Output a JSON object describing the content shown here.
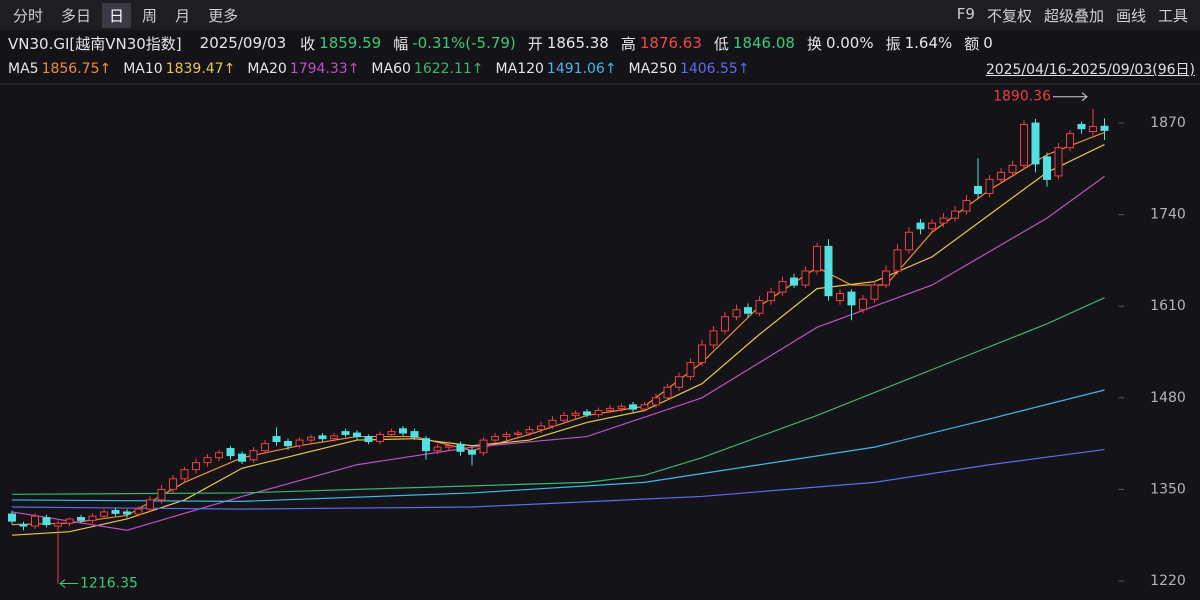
{
  "toolbar": {
    "tabs": [
      "分时",
      "多日",
      "日",
      "周",
      "月",
      "更多"
    ],
    "tools": [
      "F9",
      "不复权",
      "超级叠加",
      "画线",
      "工具"
    ]
  },
  "quote": {
    "symbol": "VN30.GI[越南VN30指数]",
    "date": "2025/09/03",
    "fields": [
      {
        "label": "收",
        "value": "1859.59",
        "color": "#3cc878"
      },
      {
        "label": "幅",
        "value": "-0.31%(-5.79)",
        "color": "#3cc878"
      },
      {
        "label": "开",
        "value": "1865.38",
        "color": "#e6e6e6"
      },
      {
        "label": "高",
        "value": "1876.63",
        "color": "#f04848"
      },
      {
        "label": "低",
        "value": "1846.08",
        "color": "#3cc878"
      },
      {
        "label": "换",
        "value": "0.00%",
        "color": "#e6e6e6"
      },
      {
        "label": "振",
        "value": "1.64%",
        "color": "#e6e6e6"
      },
      {
        "label": "额",
        "value": "0",
        "color": "#e6e6e6"
      }
    ]
  },
  "chart_data": {
    "type": "candlestick",
    "date_range": "2025/04/16-2025/09/03(96日)",
    "up_color": "#f03c46",
    "down_color": "#54e0e0",
    "open": [
      1315,
      1300,
      1298,
      1310,
      1298,
      1302,
      1310,
      1306,
      1312,
      1320,
      1318,
      1315,
      1322,
      1335,
      1350,
      1365,
      1378,
      1388,
      1395,
      1408,
      1400,
      1392,
      1405,
      1425,
      1418,
      1412,
      1420,
      1426,
      1422,
      1432,
      1430,
      1425,
      1418,
      1428,
      1436,
      1432,
      1422,
      1405,
      1410,
      1414,
      1405,
      1402,
      1420,
      1425,
      1428,
      1430,
      1435,
      1440,
      1448,
      1455,
      1460,
      1456,
      1462,
      1465,
      1470,
      1464,
      1470,
      1480,
      1495,
      1510,
      1530,
      1555,
      1575,
      1595,
      1608,
      1600,
      1618,
      1630,
      1650,
      1640,
      1660,
      1695,
      1618,
      1630,
      1605,
      1620,
      1640,
      1660,
      1690,
      1728,
      1720,
      1728,
      1735,
      1745,
      1780,
      1770,
      1790,
      1800,
      1810,
      1870,
      1822,
      1795,
      1835,
      1868,
      1858,
      1865.38
    ],
    "high": [
      1320,
      1304,
      1316,
      1314,
      1306,
      1310,
      1314,
      1316,
      1322,
      1324,
      1322,
      1326,
      1340,
      1356,
      1370,
      1382,
      1394,
      1400,
      1406,
      1412,
      1404,
      1410,
      1420,
      1438,
      1422,
      1424,
      1428,
      1430,
      1430,
      1436,
      1434,
      1428,
      1432,
      1436,
      1440,
      1436,
      1426,
      1414,
      1418,
      1418,
      1410,
      1424,
      1430,
      1432,
      1434,
      1440,
      1446,
      1454,
      1460,
      1462,
      1464,
      1466,
      1470,
      1472,
      1474,
      1474,
      1486,
      1500,
      1516,
      1536,
      1562,
      1582,
      1602,
      1612,
      1614,
      1624,
      1636,
      1652,
      1656,
      1666,
      1700,
      1705,
      1634,
      1634,
      1626,
      1646,
      1668,
      1698,
      1722,
      1734,
      1734,
      1742,
      1752,
      1768,
      1820,
      1796,
      1806,
      1816,
      1874,
      1876,
      1828,
      1842,
      1860,
      1872,
      1890.36,
      1876.63
    ],
    "low": [
      1300,
      1292,
      1294,
      1296,
      1216.35,
      1298,
      1302,
      1302,
      1308,
      1312,
      1310,
      1312,
      1318,
      1330,
      1345,
      1360,
      1372,
      1382,
      1390,
      1392,
      1386,
      1388,
      1400,
      1412,
      1406,
      1408,
      1416,
      1418,
      1418,
      1424,
      1420,
      1414,
      1414,
      1424,
      1426,
      1420,
      1392,
      1400,
      1406,
      1398,
      1384,
      1398,
      1416,
      1420,
      1424,
      1426,
      1430,
      1436,
      1444,
      1450,
      1452,
      1452,
      1458,
      1460,
      1460,
      1460,
      1466,
      1476,
      1490,
      1505,
      1525,
      1550,
      1570,
      1590,
      1594,
      1596,
      1612,
      1625,
      1636,
      1636,
      1655,
      1618,
      1612,
      1590,
      1600,
      1615,
      1636,
      1655,
      1685,
      1712,
      1715,
      1722,
      1730,
      1740,
      1762,
      1765,
      1784,
      1795,
      1805,
      1800,
      1780,
      1790,
      1830,
      1855,
      1852,
      1846.08
    ],
    "close": [
      1305,
      1298,
      1312,
      1300,
      1302,
      1308,
      1306,
      1312,
      1318,
      1316,
      1315,
      1322,
      1335,
      1350,
      1365,
      1378,
      1388,
      1395,
      1402,
      1398,
      1390,
      1405,
      1415,
      1418,
      1412,
      1420,
      1424,
      1422,
      1426,
      1428,
      1425,
      1418,
      1428,
      1432,
      1430,
      1424,
      1405,
      1410,
      1412,
      1404,
      1400,
      1420,
      1425,
      1428,
      1430,
      1435,
      1440,
      1448,
      1455,
      1458,
      1456,
      1462,
      1465,
      1468,
      1464,
      1470,
      1480,
      1495,
      1510,
      1530,
      1555,
      1575,
      1595,
      1605,
      1600,
      1618,
      1630,
      1645,
      1640,
      1660,
      1695,
      1625,
      1628,
      1612,
      1620,
      1640,
      1660,
      1690,
      1715,
      1720,
      1728,
      1735,
      1745,
      1760,
      1770,
      1790,
      1800,
      1810,
      1868,
      1812,
      1790,
      1835,
      1855,
      1862,
      1865,
      1859.59
    ],
    "series": [
      {
        "name": "MA5",
        "color": "#f08c3c",
        "legend_label": "1856.75↑",
        "x": [
          0,
          5,
          10,
          15,
          20,
          25,
          30,
          35,
          40,
          45,
          50,
          55,
          60,
          65,
          70,
          73,
          76,
          80,
          85,
          90,
          95
        ],
        "values": [
          1300,
          1302,
          1313,
          1360,
          1395,
          1412,
          1425,
          1425,
          1405,
          1428,
          1455,
          1468,
          1530,
          1610,
          1665,
          1640,
          1640,
          1715,
          1775,
          1825,
          1856.75
        ]
      },
      {
        "name": "MA10",
        "color": "#e8c84a",
        "legend_label": "1839.47↑",
        "x": [
          0,
          5,
          10,
          15,
          20,
          25,
          30,
          35,
          40,
          45,
          50,
          55,
          60,
          65,
          70,
          75,
          80,
          85,
          90,
          95
        ],
        "values": [
          1285,
          1290,
          1308,
          1335,
          1380,
          1400,
          1420,
          1422,
          1412,
          1420,
          1445,
          1462,
          1500,
          1570,
          1635,
          1645,
          1680,
          1740,
          1800,
          1839.47
        ]
      },
      {
        "name": "MA20",
        "color": "#c050c8",
        "legend_label": "1794.33↑",
        "x": [
          0,
          10,
          20,
          30,
          40,
          50,
          60,
          70,
          80,
          90,
          95
        ],
        "values": [
          1318,
          1292,
          1340,
          1385,
          1410,
          1425,
          1480,
          1580,
          1640,
          1735,
          1794.33
        ]
      },
      {
        "name": "MA60",
        "color": "#3cb46e",
        "legend_label": "1622.11↑",
        "x": [
          0,
          20,
          40,
          50,
          55,
          60,
          70,
          80,
          90,
          95
        ],
        "values": [
          1343,
          1345,
          1355,
          1360,
          1370,
          1395,
          1455,
          1520,
          1585,
          1622.11
        ]
      },
      {
        "name": "MA120",
        "color": "#40b8e8",
        "legend_label": "1491.06↑",
        "x": [
          0,
          20,
          40,
          55,
          65,
          75,
          85,
          95
        ],
        "values": [
          1335,
          1333,
          1345,
          1360,
          1385,
          1410,
          1450,
          1491.06
        ]
      },
      {
        "name": "MA250",
        "color": "#5a6cf0",
        "legend_label": "1406.55↑",
        "x": [
          0,
          20,
          40,
          60,
          75,
          85,
          95
        ],
        "values": [
          1325,
          1322,
          1325,
          1340,
          1360,
          1385,
          1406.55
        ]
      }
    ],
    "annotations": {
      "max_label": "1890.36",
      "min_label": "1216.35"
    },
    "ylim": [
      1193,
      1924
    ],
    "yticks": [
      1220,
      1350,
      1480,
      1610,
      1740,
      1870
    ]
  }
}
